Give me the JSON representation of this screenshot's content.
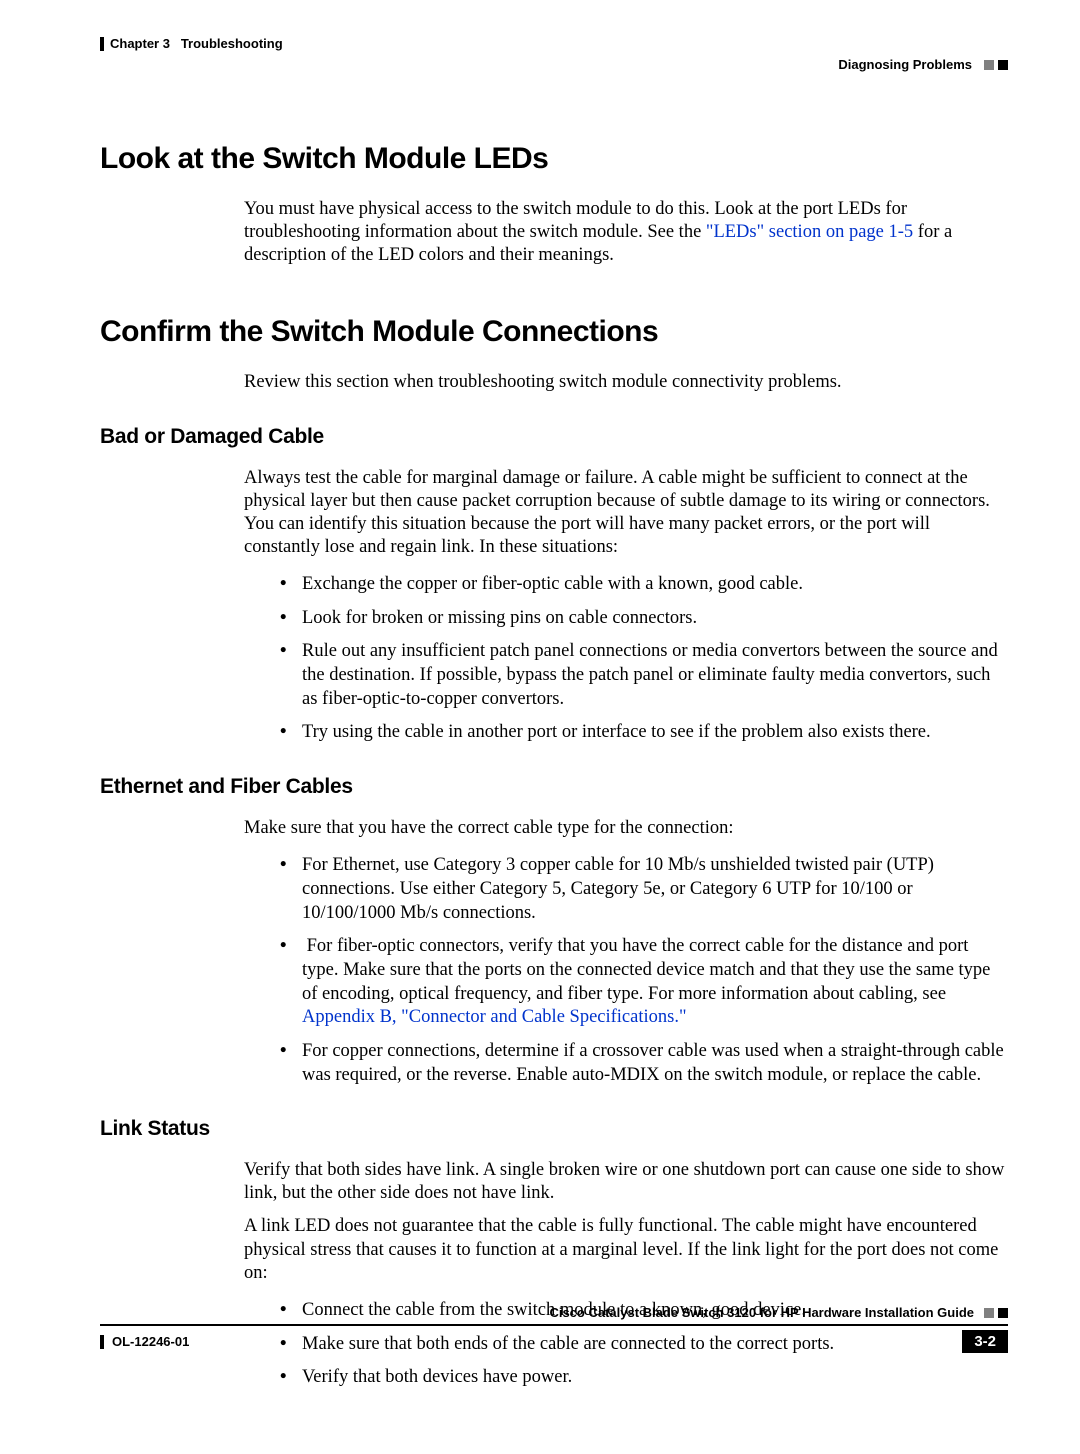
{
  "header": {
    "chapter_label": "Chapter 3",
    "chapter_title": "Troubleshooting",
    "section_label": "Diagnosing Problems"
  },
  "h1_leds": "Look at the Switch Module LEDs",
  "p_leds_1a": "You must have physical access to the switch module to do this. Look at the port LEDs for troubleshooting information about the switch module. See the ",
  "p_leds_link": "\"LEDs\" section on page 1-5",
  "p_leds_1b": " for a description of the LED colors and their meanings.",
  "h1_confirm": "Confirm the Switch Module Connections",
  "p_confirm": "Review this section when troubleshooting switch module connectivity problems.",
  "h2_bad": "Bad or Damaged Cable",
  "p_bad": "Always test the cable for marginal damage or failure. A cable might be sufficient to connect at the physical layer but then cause packet corruption because of subtle damage to its wiring or connectors. You can identify this situation because the port will have many packet errors, or the port will constantly lose and regain link. In these situations:",
  "bad_bullets": [
    "Exchange the copper or fiber-optic cable with a known, good cable.",
    "Look for broken or missing pins on cable connectors.",
    "Rule out any insufficient patch panel connections or media convertors between the source and the destination. If possible, bypass the patch panel or eliminate faulty media convertors, such as fiber-optic-to-copper convertors.",
    "Try using the cable in another port or interface to see if the problem also exists there."
  ],
  "h2_eth": "Ethernet and Fiber Cables",
  "p_eth": "Make sure that you have the correct cable type for the connection:",
  "eth_b1": "For Ethernet, use Category 3 copper cable for 10 Mb/s unshielded twisted pair (UTP) connections. Use either Category 5, Category 5e, or Category 6 UTP for 10/100 or 10/100/1000 Mb/s connections.",
  "eth_b2a": "For fiber-optic connectors, verify that you have the correct cable for the distance and port type. Make sure that the ports on the connected device match and that they use the same type of encoding, optical frequency, and fiber type. For more information about cabling, see ",
  "eth_b2_link": "Appendix B, \"Connector and Cable Specifications.\"",
  "eth_b3": "For copper connections, determine if a crossover cable was used when a straight-through cable was required, or the reverse. Enable auto-MDIX on the switch module, or replace the cable.",
  "h2_link": "Link Status",
  "p_link1": "Verify that both sides have link. A single broken wire or one shutdown port can cause one side to show link, but the other side does not have link.",
  "p_link2": "A link LED does not guarantee that the cable is fully functional. The cable might have encountered physical stress that causes it to function at a marginal level. If the link light for the port does not come on:",
  "link_bullets": [
    "Connect the cable from the switch module to a known, good device.",
    "Make sure that both ends of the cable are connected to the correct ports.",
    "Verify that both devices have power."
  ],
  "footer": {
    "guide": "Cisco Catalyst Blade Switch 3120 for HP Hardware Installation Guide",
    "docnum": "OL-12246-01",
    "pagenum": "3-2"
  }
}
